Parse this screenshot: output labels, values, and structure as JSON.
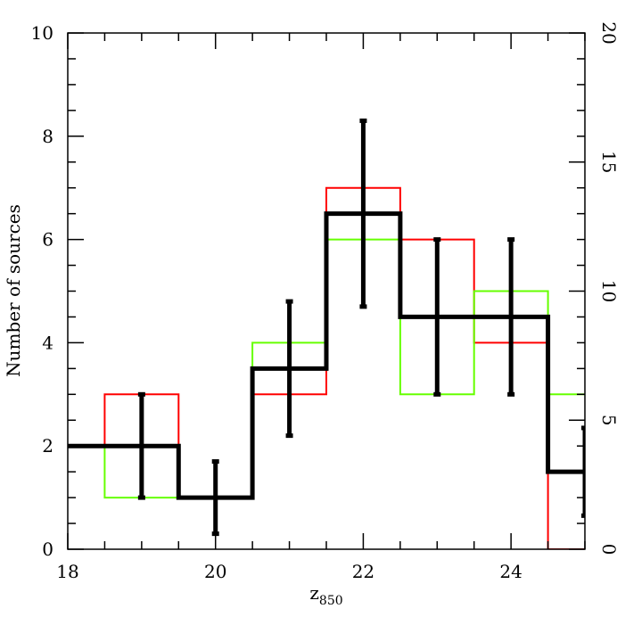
{
  "chart_data": {
    "type": "histogram",
    "xlabel": "z",
    "xlabel_subscript": "850",
    "ylabel": "Number of sources",
    "xlim": [
      18,
      25
    ],
    "ylim": [
      0,
      10
    ],
    "y2lim": [
      0,
      20
    ],
    "x_ticks": [
      18,
      20,
      22,
      24
    ],
    "y_ticks": [
      0,
      2,
      4,
      6,
      8,
      10
    ],
    "y2_ticks": [
      0,
      5,
      10,
      15,
      20
    ],
    "bin_edges": [
      17.5,
      18.5,
      19.5,
      20.5,
      21.5,
      22.5,
      23.5,
      24.5,
      25.5
    ],
    "bin_centers": [
      18,
      19,
      20,
      21,
      22,
      23,
      24,
      25
    ],
    "series": [
      {
        "color": "#ff0000",
        "values": [
          2,
          3,
          1,
          3,
          7,
          6,
          4,
          0
        ]
      },
      {
        "color": "#66ff00",
        "values": [
          2,
          1,
          1,
          4,
          6,
          3,
          5,
          3
        ]
      },
      {
        "color": "#000000",
        "values": [
          2,
          2,
          1,
          3.5,
          6.5,
          4.5,
          4.5,
          1.5
        ]
      }
    ],
    "errorbars": {
      "color": "#000000",
      "x": [
        19,
        20,
        21,
        22,
        23,
        24,
        25
      ],
      "low": [
        1,
        0.3,
        2.2,
        4.7,
        3,
        3,
        0.65
      ],
      "high": [
        3,
        1.7,
        4.8,
        8.3,
        6,
        6,
        2.35
      ]
    },
    "grid": false,
    "legend": false
  }
}
